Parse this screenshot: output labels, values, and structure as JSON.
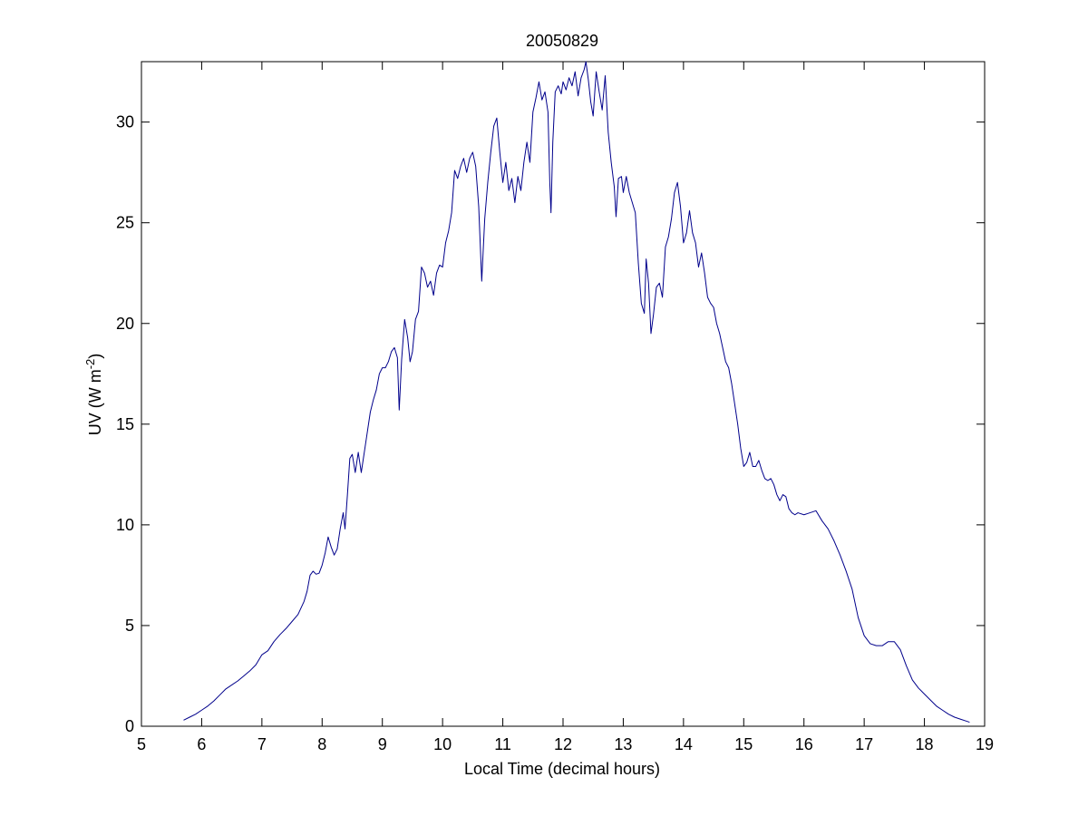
{
  "chart_data": {
    "type": "line",
    "title": "20050829",
    "xlabel": "Local Time (decimal hours)",
    "ylabel_main": "UV (W m",
    "ylabel_sup": "-2",
    "ylabel_close": ")",
    "xlim": [
      5,
      19
    ],
    "ylim": [
      0,
      33
    ],
    "xticks": [
      "5",
      "6",
      "7",
      "8",
      "9",
      "10",
      "11",
      "12",
      "13",
      "14",
      "15",
      "16",
      "17",
      "18",
      "19"
    ],
    "yticks": [
      "0",
      "5",
      "10",
      "15",
      "20",
      "25",
      "30"
    ],
    "grid": false,
    "series": [
      {
        "color": "#00008b",
        "points": [
          [
            5.7,
            0.3
          ],
          [
            5.8,
            0.45
          ],
          [
            5.9,
            0.6
          ],
          [
            6.0,
            0.8
          ],
          [
            6.1,
            1.0
          ],
          [
            6.2,
            1.25
          ],
          [
            6.3,
            1.55
          ],
          [
            6.4,
            1.85
          ],
          [
            6.5,
            2.05
          ],
          [
            6.6,
            2.25
          ],
          [
            6.7,
            2.5
          ],
          [
            6.8,
            2.75
          ],
          [
            6.9,
            3.05
          ],
          [
            7.0,
            3.55
          ],
          [
            7.1,
            3.75
          ],
          [
            7.2,
            4.2
          ],
          [
            7.3,
            4.55
          ],
          [
            7.4,
            4.85
          ],
          [
            7.5,
            5.2
          ],
          [
            7.6,
            5.55
          ],
          [
            7.7,
            6.2
          ],
          [
            7.75,
            6.7
          ],
          [
            7.8,
            7.5
          ],
          [
            7.85,
            7.7
          ],
          [
            7.9,
            7.55
          ],
          [
            7.95,
            7.6
          ],
          [
            8.0,
            8.0
          ],
          [
            8.05,
            8.6
          ],
          [
            8.1,
            9.4
          ],
          [
            8.15,
            8.9
          ],
          [
            8.2,
            8.5
          ],
          [
            8.25,
            8.8
          ],
          [
            8.3,
            9.8
          ],
          [
            8.35,
            10.6
          ],
          [
            8.38,
            9.8
          ],
          [
            8.42,
            11.5
          ],
          [
            8.46,
            13.3
          ],
          [
            8.5,
            13.5
          ],
          [
            8.55,
            12.6
          ],
          [
            8.6,
            13.6
          ],
          [
            8.65,
            12.6
          ],
          [
            8.7,
            13.6
          ],
          [
            8.75,
            14.6
          ],
          [
            8.8,
            15.6
          ],
          [
            8.85,
            16.2
          ],
          [
            8.9,
            16.7
          ],
          [
            8.95,
            17.5
          ],
          [
            9.0,
            17.8
          ],
          [
            9.05,
            17.8
          ],
          [
            9.1,
            18.1
          ],
          [
            9.15,
            18.6
          ],
          [
            9.2,
            18.8
          ],
          [
            9.25,
            18.3
          ],
          [
            9.28,
            15.7
          ],
          [
            9.32,
            18.2
          ],
          [
            9.37,
            20.2
          ],
          [
            9.42,
            19.3
          ],
          [
            9.46,
            18.1
          ],
          [
            9.5,
            18.6
          ],
          [
            9.55,
            20.2
          ],
          [
            9.6,
            20.6
          ],
          [
            9.65,
            22.8
          ],
          [
            9.7,
            22.5
          ],
          [
            9.75,
            21.8
          ],
          [
            9.8,
            22.1
          ],
          [
            9.85,
            21.4
          ],
          [
            9.9,
            22.5
          ],
          [
            9.95,
            22.9
          ],
          [
            10.0,
            22.8
          ],
          [
            10.05,
            24.0
          ],
          [
            10.1,
            24.6
          ],
          [
            10.15,
            25.5
          ],
          [
            10.2,
            27.6
          ],
          [
            10.25,
            27.2
          ],
          [
            10.3,
            27.8
          ],
          [
            10.35,
            28.2
          ],
          [
            10.4,
            27.5
          ],
          [
            10.45,
            28.2
          ],
          [
            10.5,
            28.5
          ],
          [
            10.55,
            27.8
          ],
          [
            10.6,
            25.8
          ],
          [
            10.65,
            22.1
          ],
          [
            10.7,
            25.2
          ],
          [
            10.75,
            27.0
          ],
          [
            10.8,
            28.5
          ],
          [
            10.85,
            29.8
          ],
          [
            10.9,
            30.2
          ],
          [
            10.95,
            28.5
          ],
          [
            11.0,
            27.0
          ],
          [
            11.05,
            28.0
          ],
          [
            11.1,
            26.6
          ],
          [
            11.15,
            27.2
          ],
          [
            11.2,
            26.0
          ],
          [
            11.25,
            27.3
          ],
          [
            11.3,
            26.6
          ],
          [
            11.35,
            28.0
          ],
          [
            11.4,
            29.0
          ],
          [
            11.45,
            28.0
          ],
          [
            11.5,
            30.5
          ],
          [
            11.55,
            31.2
          ],
          [
            11.6,
            32.0
          ],
          [
            11.65,
            31.1
          ],
          [
            11.7,
            31.5
          ],
          [
            11.75,
            30.5
          ],
          [
            11.78,
            27.0
          ],
          [
            11.8,
            25.5
          ],
          [
            11.83,
            29.0
          ],
          [
            11.87,
            31.5
          ],
          [
            11.92,
            31.8
          ],
          [
            11.97,
            31.4
          ],
          [
            12.0,
            32.0
          ],
          [
            12.05,
            31.6
          ],
          [
            12.1,
            32.2
          ],
          [
            12.15,
            31.8
          ],
          [
            12.2,
            32.5
          ],
          [
            12.25,
            31.3
          ],
          [
            12.3,
            32.2
          ],
          [
            12.35,
            32.6
          ],
          [
            12.38,
            33.0
          ],
          [
            12.42,
            32.1
          ],
          [
            12.46,
            31.0
          ],
          [
            12.5,
            30.3
          ],
          [
            12.55,
            32.5
          ],
          [
            12.6,
            31.5
          ],
          [
            12.65,
            30.6
          ],
          [
            12.7,
            32.3
          ],
          [
            12.75,
            29.5
          ],
          [
            12.8,
            28.0
          ],
          [
            12.85,
            26.8
          ],
          [
            12.88,
            25.3
          ],
          [
            12.92,
            27.2
          ],
          [
            12.97,
            27.3
          ],
          [
            13.0,
            26.5
          ],
          [
            13.05,
            27.3
          ],
          [
            13.1,
            26.5
          ],
          [
            13.15,
            26.0
          ],
          [
            13.2,
            25.5
          ],
          [
            13.25,
            23.0
          ],
          [
            13.3,
            21.0
          ],
          [
            13.35,
            20.5
          ],
          [
            13.38,
            23.2
          ],
          [
            13.42,
            22.0
          ],
          [
            13.46,
            19.5
          ],
          [
            13.5,
            20.4
          ],
          [
            13.55,
            21.8
          ],
          [
            13.6,
            22.0
          ],
          [
            13.65,
            21.3
          ],
          [
            13.7,
            23.8
          ],
          [
            13.75,
            24.3
          ],
          [
            13.8,
            25.2
          ],
          [
            13.85,
            26.5
          ],
          [
            13.9,
            27.0
          ],
          [
            13.95,
            25.8
          ],
          [
            14.0,
            24.0
          ],
          [
            14.05,
            24.5
          ],
          [
            14.1,
            25.6
          ],
          [
            14.15,
            24.5
          ],
          [
            14.2,
            24.0
          ],
          [
            14.25,
            22.8
          ],
          [
            14.3,
            23.5
          ],
          [
            14.35,
            22.5
          ],
          [
            14.4,
            21.3
          ],
          [
            14.45,
            21.0
          ],
          [
            14.5,
            20.8
          ],
          [
            14.55,
            20.0
          ],
          [
            14.6,
            19.5
          ],
          [
            14.65,
            18.8
          ],
          [
            14.7,
            18.1
          ],
          [
            14.75,
            17.8
          ],
          [
            14.8,
            17.0
          ],
          [
            14.85,
            16.0
          ],
          [
            14.9,
            15.0
          ],
          [
            14.95,
            13.8
          ],
          [
            15.0,
            12.9
          ],
          [
            15.05,
            13.1
          ],
          [
            15.1,
            13.6
          ],
          [
            15.15,
            12.9
          ],
          [
            15.2,
            12.9
          ],
          [
            15.25,
            13.2
          ],
          [
            15.3,
            12.7
          ],
          [
            15.35,
            12.3
          ],
          [
            15.4,
            12.2
          ],
          [
            15.45,
            12.3
          ],
          [
            15.5,
            12.0
          ],
          [
            15.55,
            11.5
          ],
          [
            15.6,
            11.2
          ],
          [
            15.65,
            11.5
          ],
          [
            15.7,
            11.4
          ],
          [
            15.75,
            10.8
          ],
          [
            15.8,
            10.6
          ],
          [
            15.85,
            10.5
          ],
          [
            15.9,
            10.6
          ],
          [
            16.0,
            10.5
          ],
          [
            16.1,
            10.6
          ],
          [
            16.2,
            10.7
          ],
          [
            16.3,
            10.2
          ],
          [
            16.4,
            9.8
          ],
          [
            16.5,
            9.2
          ],
          [
            16.6,
            8.5
          ],
          [
            16.7,
            7.7
          ],
          [
            16.8,
            6.8
          ],
          [
            16.9,
            5.4
          ],
          [
            17.0,
            4.5
          ],
          [
            17.1,
            4.1
          ],
          [
            17.2,
            4.0
          ],
          [
            17.3,
            4.0
          ],
          [
            17.4,
            4.2
          ],
          [
            17.5,
            4.2
          ],
          [
            17.6,
            3.8
          ],
          [
            17.7,
            3.0
          ],
          [
            17.8,
            2.3
          ],
          [
            17.9,
            1.9
          ],
          [
            18.0,
            1.6
          ],
          [
            18.1,
            1.3
          ],
          [
            18.2,
            1.0
          ],
          [
            18.3,
            0.8
          ],
          [
            18.4,
            0.6
          ],
          [
            18.5,
            0.45
          ],
          [
            18.6,
            0.35
          ],
          [
            18.7,
            0.25
          ],
          [
            18.75,
            0.2
          ]
        ]
      }
    ]
  }
}
